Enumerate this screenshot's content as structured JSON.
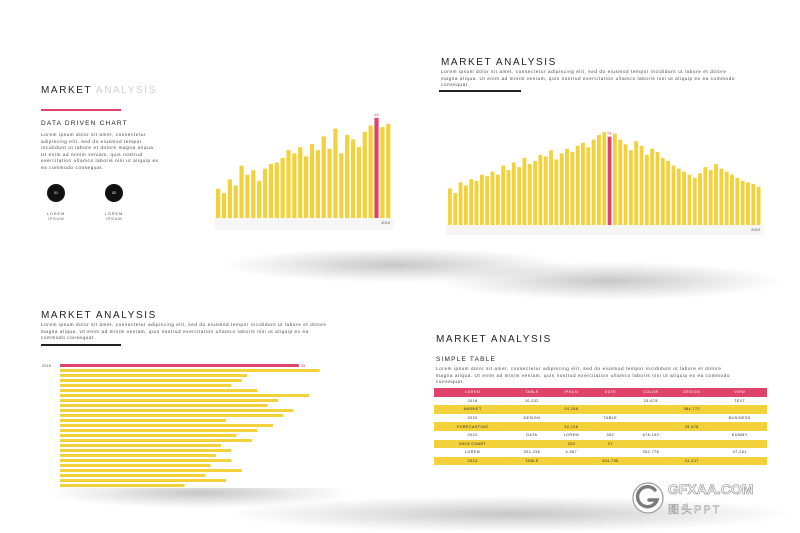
{
  "colors": {
    "accent": "#f2d13a",
    "highlight": "#e0436a",
    "dark": "#111111",
    "divider": "#222222"
  },
  "slide1": {
    "title_dark": "MARKET",
    "title_light": "ANALYSIS",
    "subtitle": "DATA DRIVEN CHART",
    "body": "Lorem ipsum dolor sit amet, consectetur adipiscing elit, sed do eiusmod tempor incididunt ut labore et dolore magna aliqua. Ut enim ad minim veniam, quis nostrud exercitation ullamco laboris nisi ut aliquip ex ea commodo consequat.",
    "circles": [
      {
        "number": "01",
        "label": "LOREM IPSUM"
      },
      {
        "number": "02",
        "label": "LOREM IPSUM"
      }
    ]
  },
  "slide2": {
    "title": "MARKET ANALYSIS",
    "body": "Lorem ipsum dolor sit amet, consectetur adipiscing elit, sed do eiusmod tempor incididunt ut labore et dolore magna aliqua. Ut enim ad minim veniam, quis nostrud exercitation ullamco laboris nisi ut aliquip ex ea commodo consequat."
  },
  "slide3": {
    "title": "MARKET ANALYSIS",
    "body": "Lorem ipsum dolor sit amet, consectetur adipiscing elit, sed do eiusmod tempor incididunt ut labore et dolore magna aliqua. Ut enim ad minim veniam, quis nostrud exercitation ullamco laboris nisi ut aliquip ex ea commodo consequat."
  },
  "slide4": {
    "title": "MARKET ANALYSIS",
    "subtitle": "SIMPLE TABLE",
    "body": "Lorem ipsum dolor sit amet, consectetur adipiscing elit, sed do eiusmod tempor incididunt ut labore et dolore magna aliqua. Ut enim ad minim veniam, quis nostrud exercitation ullamco laboris nisi ut aliquip ex ea commodo consequat.",
    "table": {
      "headers": [
        "LOREM",
        "TABLE",
        "IPSUM",
        "DATE",
        "COLOR",
        "DESIGN",
        "VIEW"
      ],
      "rows": [
        [
          "2018",
          "10,332",
          "",
          "",
          "25,678",
          "",
          "TEXT"
        ],
        [
          "MARKET",
          "",
          "24,258",
          "",
          "",
          "384,772",
          ""
        ],
        [
          "2020",
          "DESIGN",
          "",
          "TABLE",
          "",
          "",
          "BUSINESS"
        ],
        [
          "FORECASTING",
          "",
          "32,126",
          "",
          "",
          "25,678",
          ""
        ],
        [
          "2022",
          "DATA",
          "LOREM",
          "352",
          "678,150",
          "",
          "DUMMY"
        ],
        [
          "DATA CHART",
          "",
          "320",
          "27",
          "",
          "",
          ""
        ],
        [
          "LOREM",
          "204,238",
          "4,587",
          "",
          "352,778",
          "",
          "47,281"
        ],
        [
          "2024",
          "TABLE",
          "",
          "304,795",
          "",
          "31,247",
          ""
        ]
      ]
    }
  },
  "chart_data": [
    {
      "type": "bar",
      "orientation": "vertical",
      "title": "DATA DRIVEN CHART",
      "values": [
        38,
        32,
        50,
        42,
        68,
        56,
        62,
        48,
        64,
        70,
        72,
        78,
        88,
        84,
        92,
        80,
        96,
        88,
        106,
        90,
        116,
        84,
        108,
        102,
        92,
        112,
        120,
        130,
        118,
        122
      ],
      "highlight_index": 27,
      "highlight_label": "45",
      "end_label": "2016",
      "ylim": [
        0,
        135
      ]
    },
    {
      "type": "bar",
      "orientation": "vertical",
      "values": [
        48,
        42,
        56,
        52,
        60,
        58,
        66,
        64,
        70,
        66,
        78,
        72,
        82,
        76,
        88,
        80,
        84,
        92,
        90,
        98,
        86,
        94,
        100,
        96,
        104,
        108,
        102,
        112,
        118,
        122,
        116,
        120,
        112,
        106,
        98,
        110,
        104,
        92,
        100,
        96,
        88,
        84,
        78,
        74,
        70,
        66,
        62,
        68,
        76,
        72,
        80,
        74,
        70,
        66,
        62,
        58,
        56,
        54,
        50
      ],
      "highlight_index": 30,
      "highlight_label": "51",
      "end_label": "2019",
      "ylim": [
        0,
        126
      ]
    },
    {
      "type": "bar",
      "orientation": "horizontal",
      "values": [
        230,
        250,
        180,
        175,
        165,
        190,
        240,
        210,
        200,
        225,
        215,
        160,
        205,
        190,
        170,
        185,
        155,
        165,
        150,
        165,
        145,
        175,
        140,
        160,
        120
      ],
      "highlight_index": 0,
      "highlight_label": "45",
      "start_label": "2019",
      "xlim": [
        0,
        260
      ]
    }
  ]
}
